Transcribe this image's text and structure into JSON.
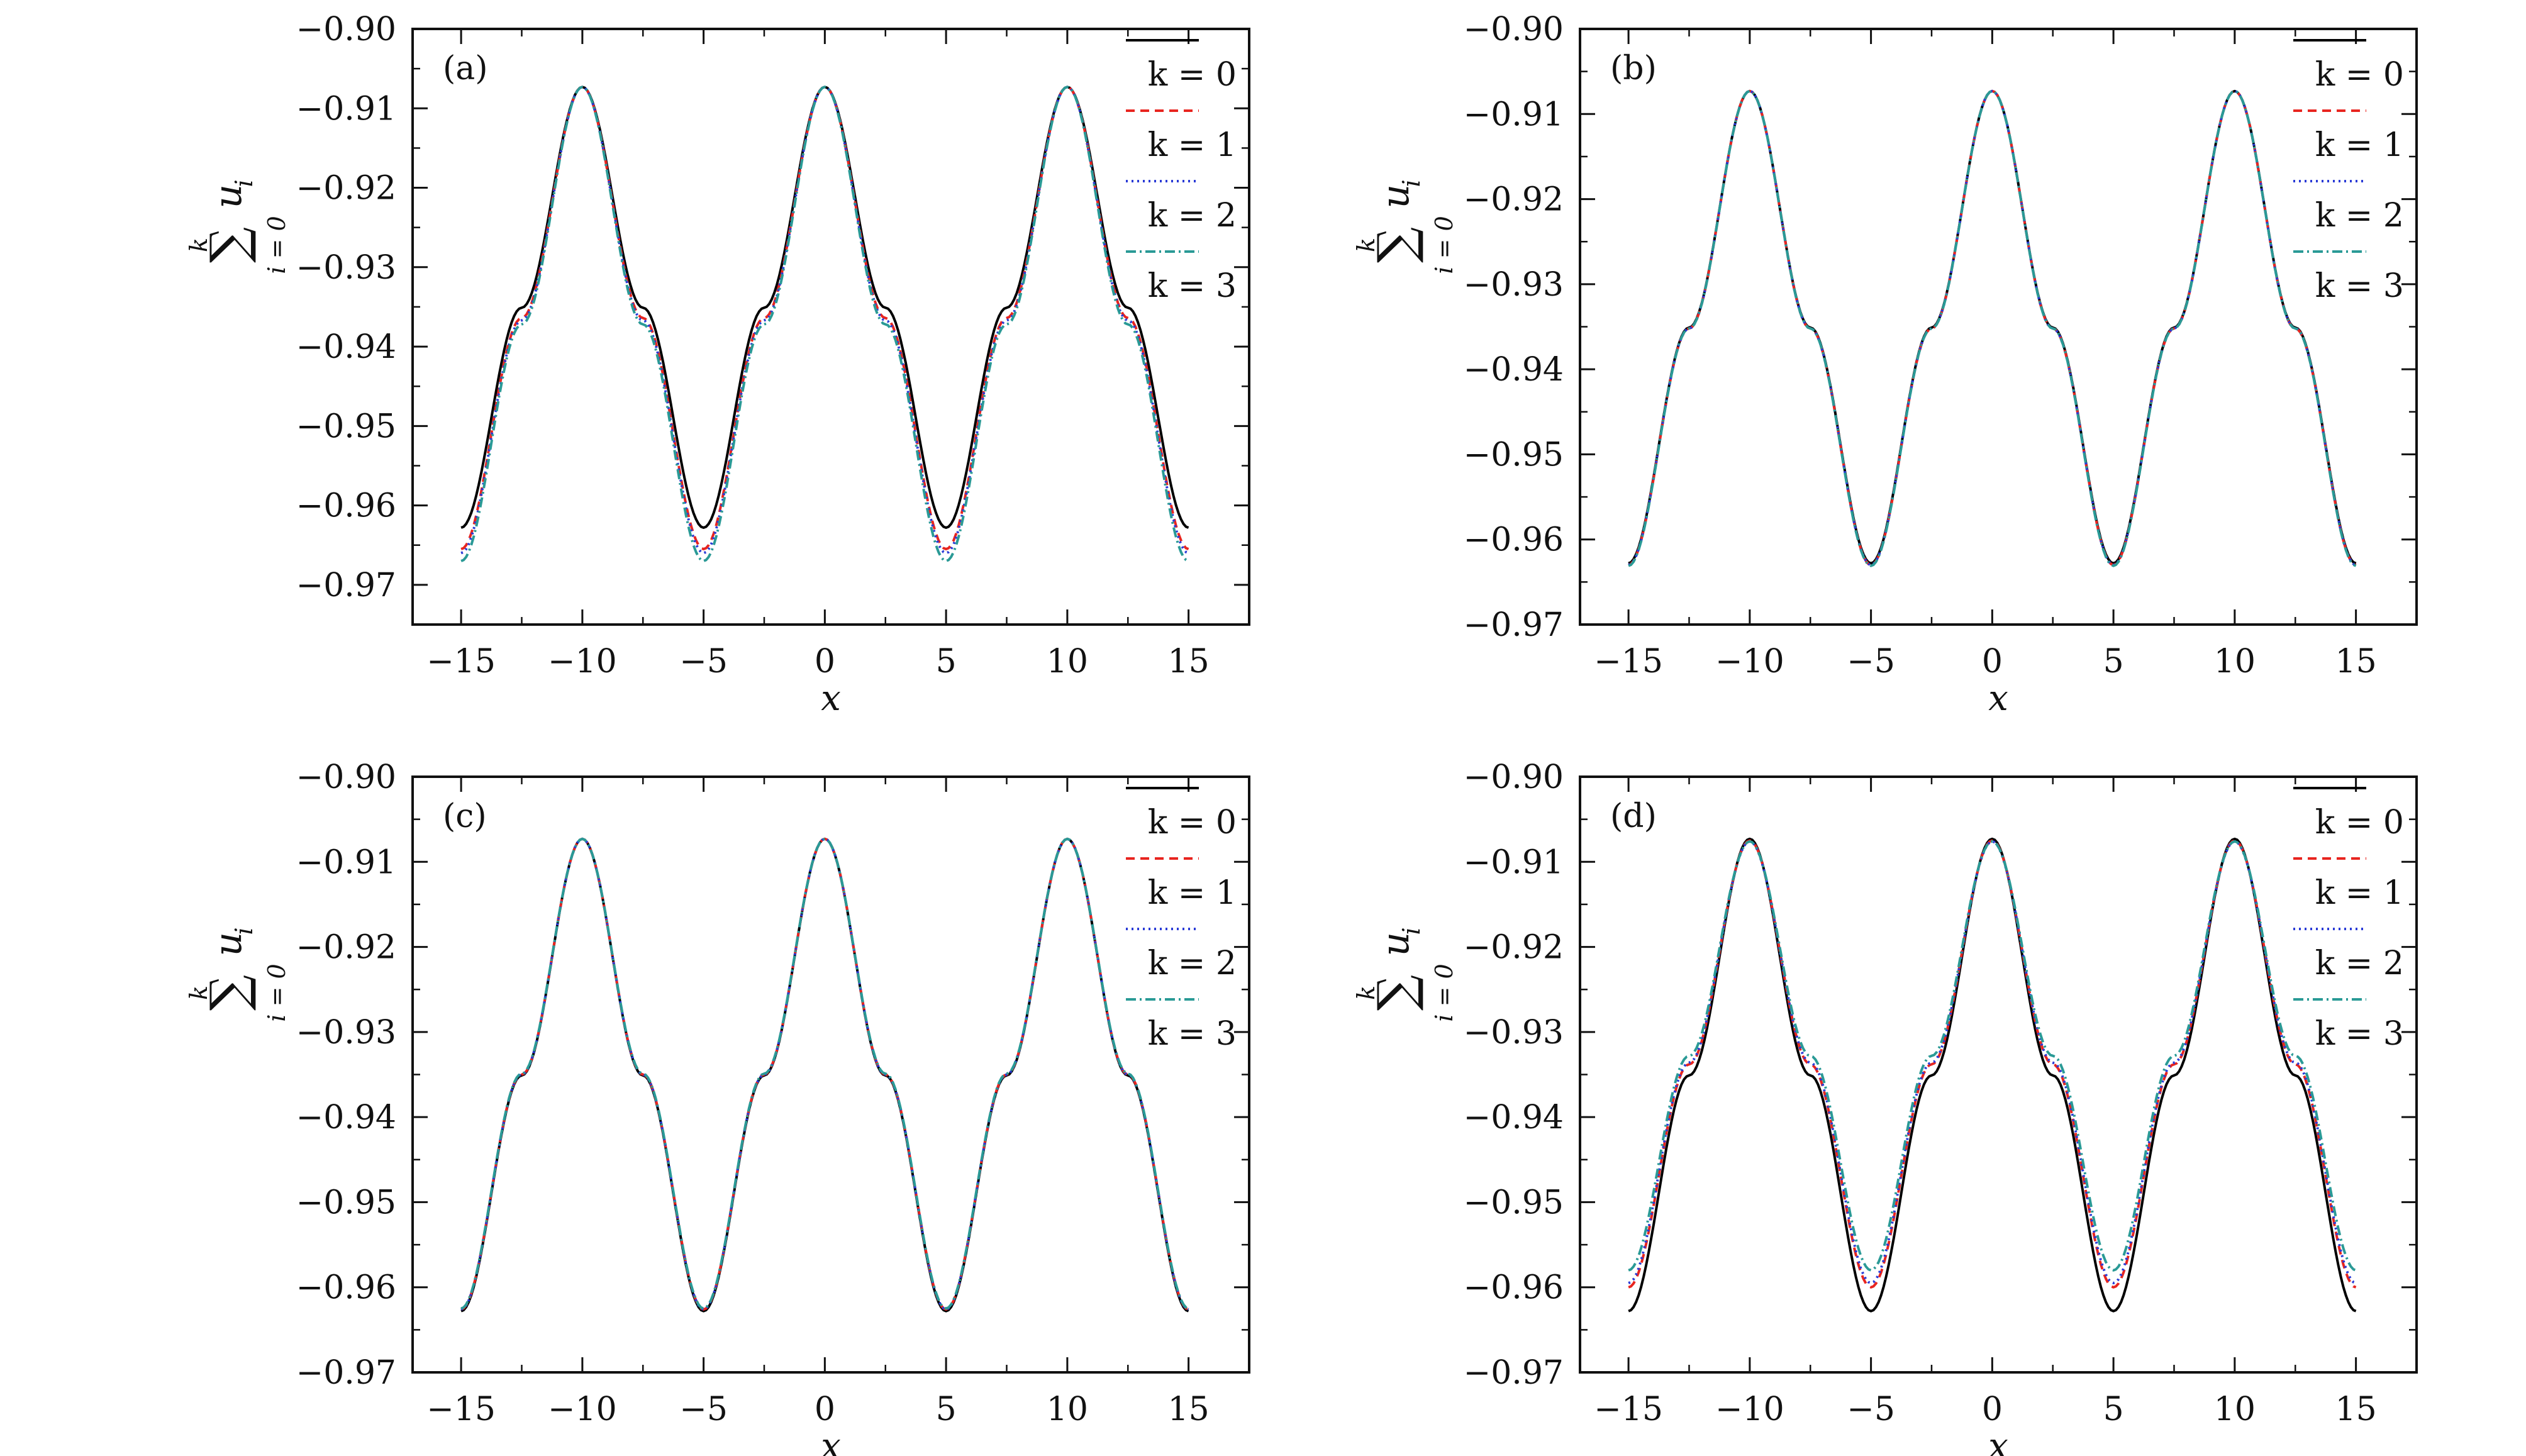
{
  "chart_data": [
    {
      "type": "line",
      "panel_label": "(a)",
      "xlabel": "x",
      "ylabel": "∑ u_i (i = 0 … k)",
      "xlim": [
        -17,
        17.5
      ],
      "ylim": [
        -0.975,
        -0.9
      ],
      "xticks": [
        -15,
        -10,
        -5,
        0,
        5,
        10,
        15
      ],
      "xtick_labels": [
        "−15",
        "−10",
        "−5",
        "0",
        "5",
        "10",
        "15"
      ],
      "yticks": [
        -0.9,
        -0.91,
        -0.92,
        -0.93,
        -0.94,
        -0.95,
        -0.96,
        -0.97
      ],
      "ytick_labels": [
        "−0.90",
        "−0.91",
        "−0.92",
        "−0.93",
        "−0.94",
        "−0.95",
        "−0.96",
        "−0.97"
      ],
      "legend_position": "top-right",
      "grid": false,
      "series": [
        {
          "name": "k = 0",
          "color": "#000000",
          "dash": "solid",
          "x": [
            -15,
            -12.5,
            -10,
            -7.5,
            -5,
            -2.5,
            0,
            2.5,
            5,
            7.5,
            10,
            12.5,
            15
          ],
          "y": [
            -0.9628,
            -0.9351,
            -0.9073,
            -0.9351,
            -0.9628,
            -0.9351,
            -0.9073,
            -0.9351,
            -0.9628,
            -0.9351,
            -0.9073,
            -0.9351,
            -0.9628
          ]
        },
        {
          "name": "k = 1",
          "color": "#e8251f",
          "dash": "dashed",
          "x": [
            -15,
            -12.5,
            -10,
            -7.5,
            -5,
            -2.5,
            0,
            2.5,
            5,
            7.5,
            10,
            12.5,
            15
          ],
          "y": [
            -0.9655,
            -0.9364,
            -0.9073,
            -0.9364,
            -0.9655,
            -0.9364,
            -0.9073,
            -0.9364,
            -0.9655,
            -0.9364,
            -0.9073,
            -0.9364,
            -0.9655
          ]
        },
        {
          "name": "k = 2",
          "color": "#2a3bd6",
          "dash": "dotted",
          "x": [
            -15,
            -12.5,
            -10,
            -7.5,
            -5,
            -2.5,
            0,
            2.5,
            5,
            7.5,
            10,
            12.5,
            15
          ],
          "y": [
            -0.966,
            -0.9367,
            -0.9073,
            -0.9367,
            -0.966,
            -0.9367,
            -0.9073,
            -0.9367,
            -0.966,
            -0.9367,
            -0.9073,
            -0.9367,
            -0.966
          ]
        },
        {
          "name": "k = 3",
          "color": "#2a9a96",
          "dash": "dashdot",
          "x": [
            -15,
            -12.5,
            -10,
            -7.5,
            -5,
            -2.5,
            0,
            2.5,
            5,
            7.5,
            10,
            12.5,
            15
          ],
          "y": [
            -0.967,
            -0.9372,
            -0.9073,
            -0.9372,
            -0.967,
            -0.9372,
            -0.9073,
            -0.9372,
            -0.967,
            -0.9372,
            -0.9073,
            -0.9372,
            -0.967
          ]
        }
      ]
    },
    {
      "type": "line",
      "panel_label": "(b)",
      "xlabel": "x",
      "ylabel": "∑ u_i (i = 0 … k)",
      "xlim": [
        -17,
        17.5
      ],
      "ylim": [
        -0.97,
        -0.9
      ],
      "xticks": [
        -15,
        -10,
        -5,
        0,
        5,
        10,
        15
      ],
      "xtick_labels": [
        "−15",
        "−10",
        "−5",
        "0",
        "5",
        "10",
        "15"
      ],
      "yticks": [
        -0.9,
        -0.91,
        -0.92,
        -0.93,
        -0.94,
        -0.95,
        -0.96,
        -0.97
      ],
      "ytick_labels": [
        "−0.90",
        "−0.91",
        "−0.92",
        "−0.93",
        "−0.94",
        "−0.95",
        "−0.96",
        "−0.97"
      ],
      "legend_position": "top-right",
      "grid": false,
      "series": [
        {
          "name": "k = 0",
          "color": "#000000",
          "dash": "solid",
          "x": [
            -15,
            -12.5,
            -10,
            -7.5,
            -5,
            -2.5,
            0,
            2.5,
            5,
            7.5,
            10,
            12.5,
            15
          ],
          "y": [
            -0.9628,
            -0.9351,
            -0.9073,
            -0.9351,
            -0.9628,
            -0.9351,
            -0.9073,
            -0.9351,
            -0.9628,
            -0.9351,
            -0.9073,
            -0.9351,
            -0.9628
          ]
        },
        {
          "name": "k = 1",
          "color": "#e8251f",
          "dash": "dashed",
          "x": [
            -15,
            -12.5,
            -10,
            -7.5,
            -5,
            -2.5,
            0,
            2.5,
            5,
            7.5,
            10,
            12.5,
            15
          ],
          "y": [
            -0.963,
            -0.9352,
            -0.9073,
            -0.9352,
            -0.963,
            -0.9352,
            -0.9073,
            -0.9352,
            -0.963,
            -0.9352,
            -0.9073,
            -0.9352,
            -0.963
          ]
        },
        {
          "name": "k = 2",
          "color": "#2a3bd6",
          "dash": "dotted",
          "x": [
            -15,
            -12.5,
            -10,
            -7.5,
            -5,
            -2.5,
            0,
            2.5,
            5,
            7.5,
            10,
            12.5,
            15
          ],
          "y": [
            -0.963,
            -0.9352,
            -0.9073,
            -0.9352,
            -0.963,
            -0.9352,
            -0.9073,
            -0.9352,
            -0.963,
            -0.9352,
            -0.9073,
            -0.9352,
            -0.963
          ]
        },
        {
          "name": "k = 3",
          "color": "#2a9a96",
          "dash": "dashdot",
          "x": [
            -15,
            -12.5,
            -10,
            -7.5,
            -5,
            -2.5,
            0,
            2.5,
            5,
            7.5,
            10,
            12.5,
            15
          ],
          "y": [
            -0.9631,
            -0.9352,
            -0.9073,
            -0.9352,
            -0.9631,
            -0.9352,
            -0.9073,
            -0.9352,
            -0.9631,
            -0.9352,
            -0.9073,
            -0.9352,
            -0.9631
          ]
        }
      ]
    },
    {
      "type": "line",
      "panel_label": "(c)",
      "xlabel": "x",
      "ylabel": "∑ u_i (i = 0 … k)",
      "xlim": [
        -17,
        17.5
      ],
      "ylim": [
        -0.97,
        -0.9
      ],
      "xticks": [
        -15,
        -10,
        -5,
        0,
        5,
        10,
        15
      ],
      "xtick_labels": [
        "−15",
        "−10",
        "−5",
        "0",
        "5",
        "10",
        "15"
      ],
      "yticks": [
        -0.9,
        -0.91,
        -0.92,
        -0.93,
        -0.94,
        -0.95,
        -0.96,
        -0.97
      ],
      "ytick_labels": [
        "−0.90",
        "−0.91",
        "−0.92",
        "−0.93",
        "−0.94",
        "−0.95",
        "−0.96",
        "−0.97"
      ],
      "legend_position": "top-right",
      "grid": false,
      "series": [
        {
          "name": "k = 0",
          "color": "#000000",
          "dash": "solid",
          "x": [
            -15,
            -12.5,
            -10,
            -7.5,
            -5,
            -2.5,
            0,
            2.5,
            5,
            7.5,
            10,
            12.5,
            15
          ],
          "y": [
            -0.9628,
            -0.9351,
            -0.9073,
            -0.9351,
            -0.9628,
            -0.9351,
            -0.9073,
            -0.9351,
            -0.9628,
            -0.9351,
            -0.9073,
            -0.9351,
            -0.9628
          ]
        },
        {
          "name": "k = 1",
          "color": "#e8251f",
          "dash": "dashed",
          "x": [
            -15,
            -12.5,
            -10,
            -7.5,
            -5,
            -2.5,
            0,
            2.5,
            5,
            7.5,
            10,
            12.5,
            15
          ],
          "y": [
            -0.9626,
            -0.935,
            -0.9073,
            -0.935,
            -0.9626,
            -0.935,
            -0.9073,
            -0.935,
            -0.9626,
            -0.935,
            -0.9073,
            -0.935,
            -0.9626
          ]
        },
        {
          "name": "k = 2",
          "color": "#2a3bd6",
          "dash": "dotted",
          "x": [
            -15,
            -12.5,
            -10,
            -7.5,
            -5,
            -2.5,
            0,
            2.5,
            5,
            7.5,
            10,
            12.5,
            15
          ],
          "y": [
            -0.9626,
            -0.935,
            -0.9073,
            -0.935,
            -0.9626,
            -0.935,
            -0.9073,
            -0.935,
            -0.9626,
            -0.935,
            -0.9073,
            -0.935,
            -0.9626
          ]
        },
        {
          "name": "k = 3",
          "color": "#2a9a96",
          "dash": "dashdot",
          "x": [
            -15,
            -12.5,
            -10,
            -7.5,
            -5,
            -2.5,
            0,
            2.5,
            5,
            7.5,
            10,
            12.5,
            15
          ],
          "y": [
            -0.9625,
            -0.9349,
            -0.9073,
            -0.9349,
            -0.9625,
            -0.9349,
            -0.9073,
            -0.9349,
            -0.9625,
            -0.9349,
            -0.9073,
            -0.9349,
            -0.9625
          ]
        }
      ]
    },
    {
      "type": "line",
      "panel_label": "(d)",
      "xlabel": "x",
      "ylabel": "∑ u_i (i = 0 … k)",
      "xlim": [
        -17,
        17.5
      ],
      "ylim": [
        -0.97,
        -0.9
      ],
      "xticks": [
        -15,
        -10,
        -5,
        0,
        5,
        10,
        15
      ],
      "xtick_labels": [
        "−15",
        "−10",
        "−5",
        "0",
        "5",
        "10",
        "15"
      ],
      "yticks": [
        -0.9,
        -0.91,
        -0.92,
        -0.93,
        -0.94,
        -0.95,
        -0.96,
        -0.97
      ],
      "ytick_labels": [
        "−0.90",
        "−0.91",
        "−0.92",
        "−0.93",
        "−0.94",
        "−0.95",
        "−0.96",
        "−0.97"
      ],
      "legend_position": "top-right",
      "grid": false,
      "series": [
        {
          "name": "k = 0",
          "color": "#000000",
          "dash": "solid",
          "x": [
            -15,
            -12.5,
            -10,
            -7.5,
            -5,
            -2.5,
            0,
            2.5,
            5,
            7.5,
            10,
            12.5,
            15
          ],
          "y": [
            -0.9628,
            -0.9351,
            -0.9073,
            -0.9351,
            -0.9628,
            -0.9351,
            -0.9073,
            -0.9351,
            -0.9628,
            -0.9351,
            -0.9073,
            -0.9351,
            -0.9628
          ]
        },
        {
          "name": "k = 1",
          "color": "#e8251f",
          "dash": "dashed",
          "x": [
            -15,
            -12.5,
            -10,
            -7.5,
            -5,
            -2.5,
            0,
            2.5,
            5,
            7.5,
            10,
            12.5,
            15
          ],
          "y": [
            -0.96,
            -0.9338,
            -0.9075,
            -0.9338,
            -0.96,
            -0.9338,
            -0.9075,
            -0.9338,
            -0.96,
            -0.9338,
            -0.9075,
            -0.9338,
            -0.96
          ]
        },
        {
          "name": "k = 2",
          "color": "#2a3bd6",
          "dash": "dotted",
          "x": [
            -15,
            -12.5,
            -10,
            -7.5,
            -5,
            -2.5,
            0,
            2.5,
            5,
            7.5,
            10,
            12.5,
            15
          ],
          "y": [
            -0.9595,
            -0.9336,
            -0.9076,
            -0.9336,
            -0.9595,
            -0.9336,
            -0.9076,
            -0.9336,
            -0.9595,
            -0.9336,
            -0.9076,
            -0.9336,
            -0.9595
          ]
        },
        {
          "name": "k = 3",
          "color": "#2a9a96",
          "dash": "dashdot",
          "x": [
            -15,
            -12.5,
            -10,
            -7.5,
            -5,
            -2.5,
            0,
            2.5,
            5,
            7.5,
            10,
            12.5,
            15
          ],
          "y": [
            -0.958,
            -0.9328,
            -0.9076,
            -0.9328,
            -0.958,
            -0.9328,
            -0.9076,
            -0.9328,
            -0.958,
            -0.9328,
            -0.9076,
            -0.9328,
            -0.958
          ]
        }
      ]
    }
  ]
}
